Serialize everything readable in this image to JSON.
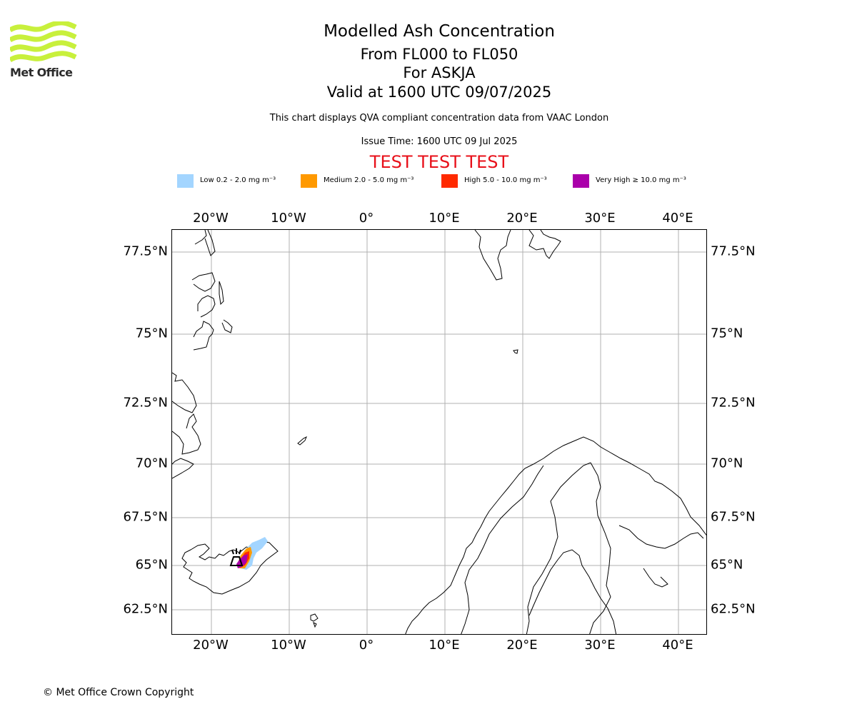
{
  "logo": {
    "text": "Met Office",
    "color": "#c8f03c",
    "icon": "met-office-wave-logo"
  },
  "titles": {
    "main": "Modelled Ash Concentration",
    "levels": "From FL000 to FL050",
    "volcano": "For ASKJA",
    "valid": "Valid at 1600 UTC 09/07/2025",
    "compliance": "This chart displays QVA compliant concentration data from VAAC London",
    "issue": "Issue Time: 1600 UTC 09 Jul 2025",
    "test": "TEST TEST TEST"
  },
  "legend": [
    {
      "label": "Low 0.2 - 2.0 mg m⁻³",
      "color": "#a3d5ff"
    },
    {
      "label": "Medium 2.0 - 5.0 mg m⁻³",
      "color": "#ff9900"
    },
    {
      "label": "High 5.0 - 10.0 mg m⁻³",
      "color": "#ff2a00"
    },
    {
      "label": "Very High ≥ 10.0 mg m⁻³",
      "color": "#aa00aa"
    }
  ],
  "map": {
    "lon_labels": [
      "20°W",
      "10°W",
      "0°",
      "10°E",
      "20°E",
      "30°E",
      "40°E"
    ],
    "lat_labels": [
      "77.5°N",
      "75°N",
      "72.5°N",
      "70°N",
      "67.5°N",
      "65°N",
      "62.5°N"
    ],
    "grid": true,
    "volcano_marker": "volcano-icon"
  },
  "footer": {
    "copyright": "© Met Office Crown Copyright"
  }
}
